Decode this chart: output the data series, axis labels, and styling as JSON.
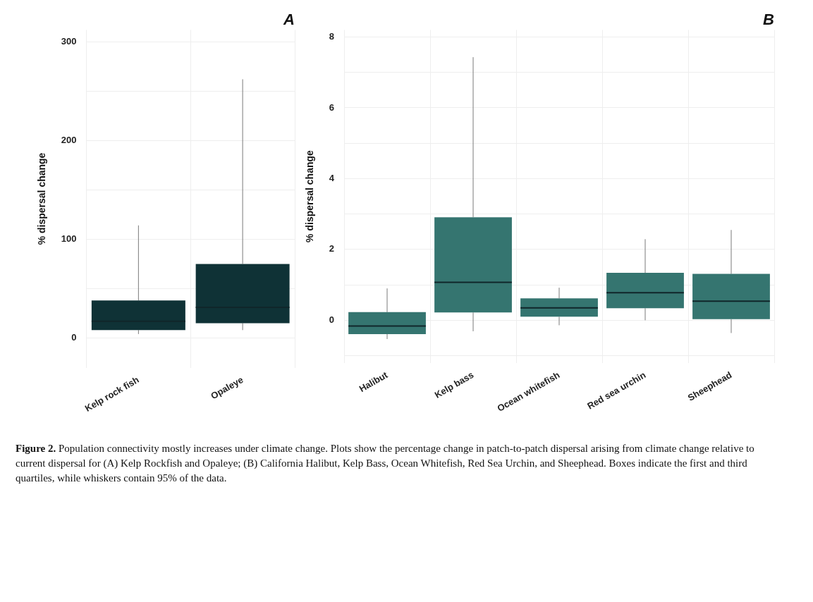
{
  "chart_data": [
    {
      "type": "box",
      "title": "A",
      "ylabel": "% dispersal change",
      "categories": [
        "Kelp rock fish",
        "Opaleye"
      ],
      "series": [
        {
          "color": "#0f3236",
          "boxes": [
            {
              "low": 4,
              "q1": 8,
              "median": 17,
              "q3": 38,
              "high": 114
            },
            {
              "low": 8,
              "q1": 15,
              "median": 31,
              "q3": 75,
              "high": 262
            }
          ]
        }
      ],
      "ylim": [
        -30,
        312
      ],
      "yticks": [
        0,
        {
          "value": 50,
          "label": null
        },
        100,
        {
          "value": 150,
          "label": null
        },
        200,
        {
          "value": 250,
          "label": null
        },
        300
      ],
      "grid": true,
      "legend": false
    },
    {
      "type": "box",
      "title": "B",
      "ylabel": "% dispersal change",
      "categories": [
        "Halibut",
        "Kelp bass",
        "Ocean whitefish",
        "Red sea urchin",
        "Sheephead"
      ],
      "series": [
        {
          "color": "#357570",
          "boxes": [
            {
              "low": -0.53,
              "q1": -0.39,
              "median": -0.16,
              "q3": 0.23,
              "high": 0.9
            },
            {
              "low": -0.31,
              "q1": 0.22,
              "median": 1.07,
              "q3": 2.91,
              "high": 7.43
            },
            {
              "low": -0.14,
              "q1": 0.1,
              "median": 0.35,
              "q3": 0.62,
              "high": 0.92
            },
            {
              "low": 0.0,
              "q1": 0.34,
              "median": 0.78,
              "q3": 1.34,
              "high": 2.29
            },
            {
              "low": -0.36,
              "q1": 0.03,
              "median": 0.54,
              "q3": 1.31,
              "high": 2.55
            }
          ]
        }
      ],
      "ylim": [
        -1.2,
        8.2
      ],
      "yticks": [
        {
          "value": -1,
          "label": null
        },
        0,
        {
          "value": 1,
          "label": null
        },
        2,
        {
          "value": 3,
          "label": null
        },
        4,
        {
          "value": 5,
          "label": null
        },
        6,
        {
          "value": 7,
          "label": null
        },
        8
      ],
      "grid": true,
      "legend": false,
      "annotations": [
        "Figure 2.",
        "Population connectivity mostly increases under climate change. Plots show the percentage change in patch-to-patch dispersal arising from climate change relative to current dispersal for (A) Kelp Rockfish and Opaleye; (B) California Halibut, Kelp Bass, Ocean Whitefish, Red Sea Urchin, and Sheephead. Boxes indicate the first and third quartiles, while whiskers contain 95% of the data."
      ]
    }
  ]
}
